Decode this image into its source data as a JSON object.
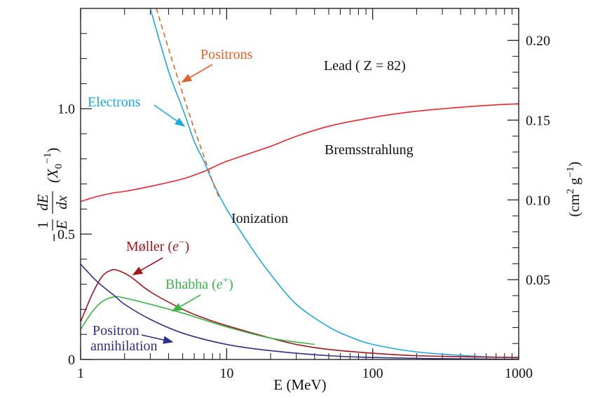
{
  "chart_data": {
    "type": "line",
    "title": "Lead  ( Z = 82)",
    "xlabel": "E  (MeV)",
    "ylabel_left": {
      "sign": "−",
      "frac1_num": "1",
      "frac1_den": "E",
      "frac2_num": "dE",
      "frac2_den": "dx",
      "units": "(X",
      "units_sub": "0",
      "units_sup": "−1",
      "units_close": ")"
    },
    "ylabel_right": {
      "open": "(cm",
      "sup1": "2",
      "mid": " g",
      "sup2": "−1",
      "close": ")"
    },
    "xscale": "log",
    "xlim": [
      1,
      1000
    ],
    "ylim": [
      0,
      1.4
    ],
    "y2lim": [
      0,
      0.22
    ],
    "x_ticks": [
      {
        "value": 1,
        "label": "1"
      },
      {
        "value": 10,
        "label": "10"
      },
      {
        "value": 100,
        "label": "100"
      },
      {
        "value": 1000,
        "label": "1000"
      }
    ],
    "y_ticks": [
      {
        "value": 0,
        "label": "0"
      },
      {
        "value": 0.5,
        "label": "0.5"
      },
      {
        "value": 1.0,
        "label": "1.0"
      }
    ],
    "y2_ticks": [
      {
        "value": 0.05,
        "label": "0.05"
      },
      {
        "value": 0.1,
        "label": "0.10"
      },
      {
        "value": 0.15,
        "label": "0.15"
      },
      {
        "value": 0.2,
        "label": "0.20"
      }
    ],
    "series": [
      {
        "name": "Bremsstrahlung",
        "color": "#e8262f",
        "dash": false,
        "points": [
          [
            1,
            0.63
          ],
          [
            1.3,
            0.65
          ],
          [
            1.7,
            0.665
          ],
          [
            2,
            0.67
          ],
          [
            3,
            0.69
          ],
          [
            5,
            0.72
          ],
          [
            7,
            0.75
          ],
          [
            10,
            0.79
          ],
          [
            20,
            0.85
          ],
          [
            30,
            0.89
          ],
          [
            50,
            0.93
          ],
          [
            100,
            0.965
          ],
          [
            200,
            0.99
          ],
          [
            500,
            1.01
          ],
          [
            1000,
            1.02
          ]
        ]
      },
      {
        "name": "Electrons",
        "color": "#1ea7e1",
        "dash": false,
        "points": [
          [
            3,
            1.4
          ],
          [
            4,
            1.15
          ],
          [
            5,
            1.0
          ],
          [
            6,
            0.87
          ],
          [
            7,
            0.79
          ],
          [
            8,
            0.71
          ],
          [
            10,
            0.6
          ],
          [
            15,
            0.44
          ],
          [
            20,
            0.34
          ],
          [
            30,
            0.22
          ],
          [
            50,
            0.13
          ],
          [
            70,
            0.09
          ],
          [
            100,
            0.06
          ],
          [
            200,
            0.03
          ],
          [
            500,
            0.013
          ],
          [
            1000,
            0.007
          ]
        ]
      },
      {
        "name": "Positrons",
        "color": "#e0622a",
        "dash": true,
        "points": [
          [
            3.3,
            1.4
          ],
          [
            4,
            1.24
          ],
          [
            5,
            1.06
          ],
          [
            6,
            0.92
          ],
          [
            7,
            0.81
          ],
          [
            8,
            0.71
          ],
          [
            9,
            0.64
          ]
        ]
      },
      {
        "name": "Møller (e−)",
        "color": "#a3161c",
        "dash": false,
        "points": [
          [
            1,
            0.15
          ],
          [
            1.2,
            0.26
          ],
          [
            1.4,
            0.33
          ],
          [
            1.6,
            0.355
          ],
          [
            1.8,
            0.355
          ],
          [
            2.2,
            0.33
          ],
          [
            3,
            0.27
          ],
          [
            5,
            0.2
          ],
          [
            7,
            0.165
          ],
          [
            10,
            0.135
          ],
          [
            20,
            0.085
          ],
          [
            30,
            0.06
          ],
          [
            50,
            0.04
          ],
          [
            100,
            0.025
          ],
          [
            200,
            0.015
          ],
          [
            500,
            0.01
          ],
          [
            1000,
            0.008
          ]
        ]
      },
      {
        "name": "Bhabha (e+)",
        "color": "#3bb54a",
        "dash": false,
        "points": [
          [
            1,
            0.12
          ],
          [
            1.2,
            0.19
          ],
          [
            1.4,
            0.23
          ],
          [
            1.7,
            0.25
          ],
          [
            2,
            0.245
          ],
          [
            3,
            0.22
          ],
          [
            5,
            0.185
          ],
          [
            10,
            0.13
          ],
          [
            20,
            0.085
          ],
          [
            40,
            0.06
          ]
        ]
      },
      {
        "name": "Positron annihilation",
        "color": "#2e2f86",
        "dash": false,
        "points": [
          [
            1,
            0.38
          ],
          [
            1.3,
            0.31
          ],
          [
            1.7,
            0.255
          ],
          [
            2,
            0.22
          ],
          [
            3,
            0.16
          ],
          [
            5,
            0.105
          ],
          [
            10,
            0.06
          ],
          [
            20,
            0.035
          ],
          [
            50,
            0.015
          ],
          [
            100,
            0.008
          ],
          [
            300,
            0.003
          ],
          [
            1000,
            0.001
          ]
        ]
      }
    ],
    "annotations": [
      {
        "id": "positrons",
        "text": "Positrons",
        "color": "#e0622a"
      },
      {
        "id": "electrons",
        "text": "Electrons",
        "color": "#1ea7e1"
      },
      {
        "id": "bremsstrahlung",
        "text": "Bremsstrahlung",
        "color": "#111111"
      },
      {
        "id": "ionization",
        "text": "Ionization",
        "color": "#111111"
      },
      {
        "id": "moller",
        "text": "Møller (",
        "italic": "e",
        "sup": "−",
        "close": ")",
        "color": "#a3161c"
      },
      {
        "id": "bhabha",
        "text": "Bhabha (",
        "italic": "e",
        "sup": "+",
        "close": ")",
        "color": "#3bb54a"
      },
      {
        "id": "positron-line1",
        "text": "Positron",
        "color": "#2e2f86"
      },
      {
        "id": "positron-line2",
        "text": "annihilation",
        "color": "#2e2f86"
      }
    ]
  }
}
